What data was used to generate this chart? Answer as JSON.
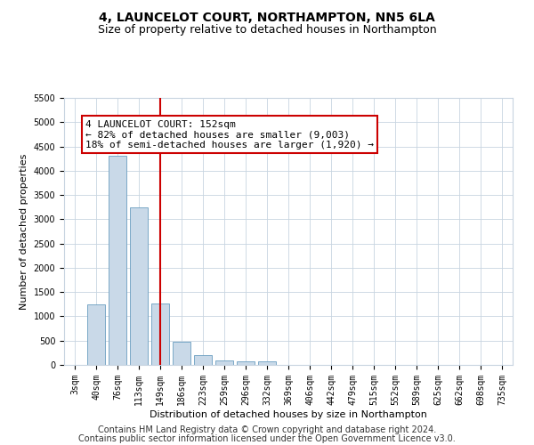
{
  "title": "4, LAUNCELOT COURT, NORTHAMPTON, NN5 6LA",
  "subtitle": "Size of property relative to detached houses in Northampton",
  "xlabel": "Distribution of detached houses by size in Northampton",
  "ylabel": "Number of detached properties",
  "bar_labels": [
    "3sqm",
    "40sqm",
    "76sqm",
    "113sqm",
    "149sqm",
    "186sqm",
    "223sqm",
    "259sqm",
    "296sqm",
    "332sqm",
    "369sqm",
    "406sqm",
    "442sqm",
    "479sqm",
    "515sqm",
    "552sqm",
    "589sqm",
    "625sqm",
    "662sqm",
    "698sqm",
    "735sqm"
  ],
  "bar_values": [
    0,
    1250,
    4300,
    3250,
    1270,
    480,
    210,
    100,
    65,
    65,
    0,
    0,
    0,
    0,
    0,
    0,
    0,
    0,
    0,
    0,
    0
  ],
  "bar_color": "#c9d9e8",
  "bar_edge_color": "#6a9ec0",
  "vline_index": 4,
  "vline_color": "#cc0000",
  "annotation_line1": "4 LAUNCELOT COURT: 152sqm",
  "annotation_line2": "← 82% of detached houses are smaller (9,003)",
  "annotation_line3": "18% of semi-detached houses are larger (1,920) →",
  "annotation_box_color": "#cc0000",
  "ylim": [
    0,
    5500
  ],
  "yticks": [
    0,
    500,
    1000,
    1500,
    2000,
    2500,
    3000,
    3500,
    4000,
    4500,
    5000,
    5500
  ],
  "footnote_line1": "Contains HM Land Registry data © Crown copyright and database right 2024.",
  "footnote_line2": "Contains public sector information licensed under the Open Government Licence v3.0.",
  "bg_color": "#ffffff",
  "grid_color": "#c8d4e0",
  "title_fontsize": 10,
  "subtitle_fontsize": 9,
  "axis_label_fontsize": 8,
  "tick_fontsize": 7,
  "annotation_fontsize": 8,
  "footnote_fontsize": 7
}
